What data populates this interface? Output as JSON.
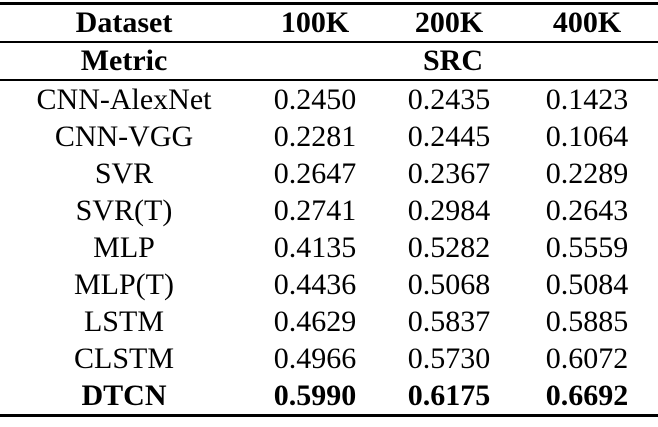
{
  "table": {
    "header": {
      "dataset_label": "Dataset",
      "columns": [
        "100K",
        "200K",
        "400K"
      ],
      "metric_label": "Metric",
      "metric_value": "SRC"
    },
    "rows": [
      {
        "label": "CNN-AlexNet",
        "values": [
          "0.2450",
          "0.2435",
          "0.1423"
        ],
        "bold": false
      },
      {
        "label": "CNN-VGG",
        "values": [
          "0.2281",
          "0.2445",
          "0.1064"
        ],
        "bold": false
      },
      {
        "label": "SVR",
        "values": [
          "0.2647",
          "0.2367",
          "0.2289"
        ],
        "bold": false
      },
      {
        "label": "SVR(T)",
        "values": [
          "0.2741",
          "0.2984",
          "0.2643"
        ],
        "bold": false
      },
      {
        "label": "MLP",
        "values": [
          "0.4135",
          "0.5282",
          "0.5559"
        ],
        "bold": false
      },
      {
        "label": "MLP(T)",
        "values": [
          "0.4436",
          "0.5068",
          "0.5084"
        ],
        "bold": false
      },
      {
        "label": "LSTM",
        "values": [
          "0.4629",
          "0.5837",
          "0.5885"
        ],
        "bold": false
      },
      {
        "label": "CLSTM",
        "values": [
          "0.4966",
          "0.5730",
          "0.6072"
        ],
        "bold": false
      },
      {
        "label": "DTCN",
        "values": [
          "0.5990",
          "0.6175",
          "0.6692"
        ],
        "bold": true
      }
    ],
    "colors": {
      "text": "#000000",
      "background": "#ffffff",
      "rule": "#000000"
    }
  }
}
